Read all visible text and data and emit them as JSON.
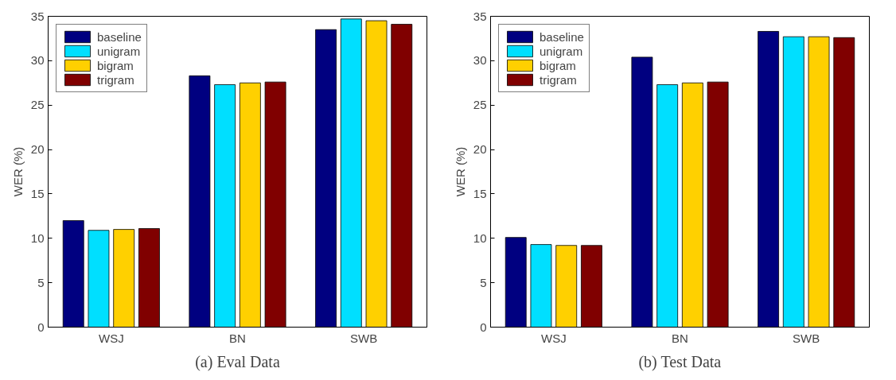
{
  "chart_data": [
    {
      "type": "bar",
      "title": "(a) Eval Data",
      "ylabel": "WER (%)",
      "categories": [
        "WSJ",
        "BN",
        "SWB"
      ],
      "series": [
        {
          "name": "baseline",
          "color": "#000080",
          "values": [
            12.0,
            28.3,
            33.5
          ]
        },
        {
          "name": "unigram",
          "color": "#00dfff",
          "values": [
            10.9,
            27.3,
            34.7
          ]
        },
        {
          "name": "bigram",
          "color": "#ffd000",
          "values": [
            11.0,
            27.5,
            34.5
          ]
        },
        {
          "name": "trigram",
          "color": "#800000",
          "values": [
            11.1,
            27.6,
            34.1
          ]
        }
      ],
      "ylim": [
        0,
        35
      ],
      "yticks": [
        0,
        5,
        10,
        15,
        20,
        25,
        30,
        35
      ],
      "grid": false,
      "legend": "top left"
    },
    {
      "type": "bar",
      "title": "(b) Test Data",
      "ylabel": "WER (%)",
      "categories": [
        "WSJ",
        "BN",
        "SWB"
      ],
      "series": [
        {
          "name": "baseline",
          "color": "#000080",
          "values": [
            10.1,
            30.4,
            33.3
          ]
        },
        {
          "name": "unigram",
          "color": "#00dfff",
          "values": [
            9.3,
            27.3,
            32.7
          ]
        },
        {
          "name": "bigram",
          "color": "#ffd000",
          "values": [
            9.2,
            27.5,
            32.7
          ]
        },
        {
          "name": "trigram",
          "color": "#800000",
          "values": [
            9.2,
            27.6,
            32.6
          ]
        }
      ],
      "ylim": [
        0,
        35
      ],
      "yticks": [
        0,
        5,
        10,
        15,
        20,
        25,
        30,
        35
      ],
      "grid": false,
      "legend": "top left"
    }
  ]
}
